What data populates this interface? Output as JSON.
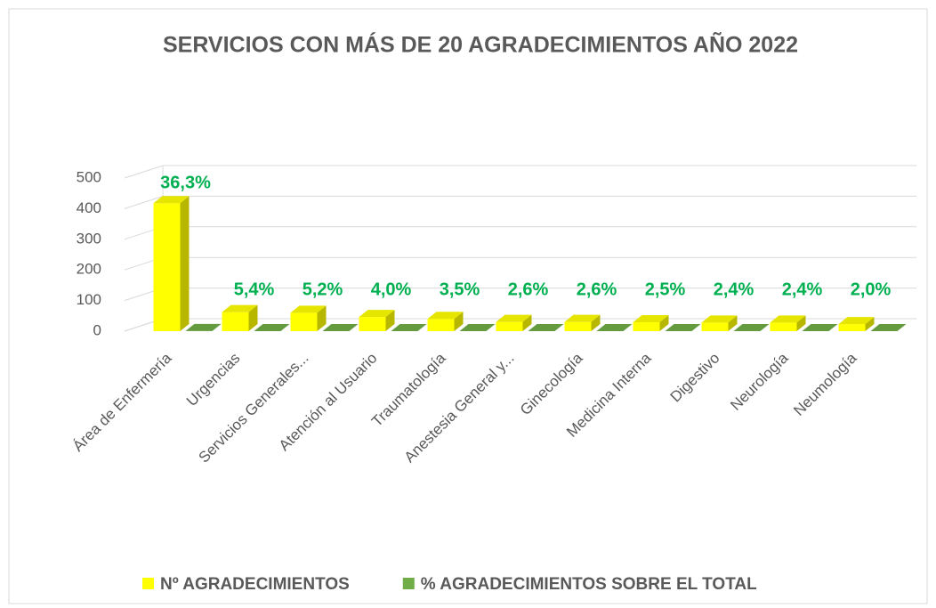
{
  "chart_data": {
    "type": "bar3d",
    "title": "SERVICIOS CON MÁS DE 20 AGRADECIMIENTOS AÑO 2022",
    "categories": [
      "Área de Enfermería",
      "Urgencias",
      "Servicios Generales...",
      "Atención al Usuario",
      "Traumatología",
      "Anestesia  General y...",
      "Ginecología",
      "Medicina Interna",
      "Digestivo",
      "Neurología",
      "Neumología"
    ],
    "series": [
      {
        "name": "Nº AGRADECIMIENTOS",
        "color": "#ffff00",
        "values": [
          418,
          62,
          60,
          46,
          40,
          30,
          30,
          29,
          28,
          28,
          23
        ]
      },
      {
        "name": "% AGRADECIMIENTOS SOBRE EL TOTAL",
        "color": "#70ad47",
        "values": [
          0.363,
          0.054,
          0.052,
          0.04,
          0.035,
          0.026,
          0.026,
          0.025,
          0.024,
          0.024,
          0.02
        ],
        "value_labels": [
          "36,3%",
          "5,4%",
          "5,2%",
          "4,0%",
          "3,5%",
          "2,6%",
          "2,6%",
          "2,5%",
          "2,4%",
          "2,4%",
          "2,0%"
        ]
      }
    ],
    "ylim": [
      0,
      500
    ],
    "yticks": [
      0,
      100,
      200,
      300,
      400,
      500
    ],
    "grid": true,
    "legend": "bottom"
  }
}
